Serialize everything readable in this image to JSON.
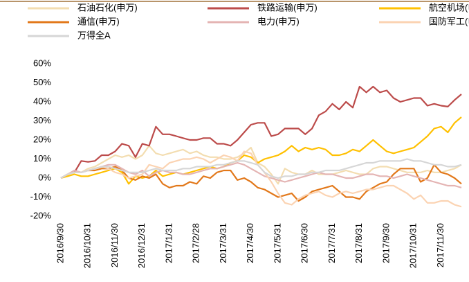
{
  "chart_data": {
    "type": "line",
    "x": [
      "2016/9/30",
      null,
      null,
      null,
      "2016/10/31",
      null,
      null,
      null,
      "2016/11/30",
      null,
      null,
      null,
      "2016/12/31",
      null,
      null,
      null,
      "2017/1/31",
      null,
      null,
      null,
      "2017/2/28",
      null,
      null,
      null,
      "2017/3/31",
      null,
      null,
      null,
      "2017/4/30",
      null,
      null,
      null,
      "2017/5/31",
      null,
      null,
      null,
      "2017/6/30",
      null,
      null,
      null,
      "2017/7/31",
      null,
      null,
      null,
      "2017/8/31",
      null,
      null,
      null,
      "2017/9/30",
      null,
      null,
      null,
      "2017/10/31",
      null,
      null,
      null,
      "2017/11/30",
      null,
      null,
      null
    ],
    "series": [
      {
        "name": "石油石化(申万)",
        "color": "#f3ddb0",
        "values": [
          0,
          2,
          3,
          3,
          5,
          6,
          8,
          10,
          12,
          11,
          12,
          10,
          12,
          17,
          13,
          12,
          13,
          14,
          15,
          13,
          14,
          12,
          11,
          11,
          10,
          10,
          11,
          13,
          16,
          8,
          6,
          2,
          -3,
          5,
          3,
          2,
          2,
          4,
          2,
          2,
          2,
          3,
          4,
          3,
          2,
          2,
          5,
          6,
          6,
          5,
          4,
          3,
          3,
          3,
          4,
          3,
          3,
          4,
          5,
          7
        ]
      },
      {
        "name": "铁路运输(申万)",
        "color": "#bc4b4a",
        "values": [
          0,
          2,
          3,
          9,
          8.5,
          9,
          12,
          12,
          14,
          18,
          17,
          11,
          18,
          17,
          27,
          23,
          23,
          22,
          21,
          20,
          20,
          21,
          21,
          18,
          18,
          17,
          20,
          24,
          28,
          29,
          29,
          22,
          23,
          26,
          26,
          26,
          23,
          26,
          33,
          35,
          39,
          36,
          40,
          37,
          48,
          45,
          48,
          45,
          46,
          42,
          40,
          41,
          42,
          42,
          38,
          39,
          38,
          37.5,
          41,
          44
        ]
      },
      {
        "name": "航空机场(申万)",
        "color": "#ffc000",
        "values": [
          0,
          1,
          2,
          1,
          1,
          2,
          3,
          4,
          5,
          3,
          -3,
          1,
          0,
          1,
          4,
          1,
          2,
          3,
          2,
          3,
          4,
          5,
          6,
          5,
          6,
          8,
          9,
          12,
          11,
          8,
          10,
          11,
          12,
          14,
          17,
          14,
          16,
          15,
          16,
          15,
          12,
          12,
          13,
          15,
          14,
          17,
          20,
          17,
          14,
          13,
          14,
          15,
          16,
          19,
          22,
          26,
          27,
          24,
          29,
          32
        ]
      },
      {
        "name": "通信(申万)",
        "color": "#e2781a",
        "values": [
          0,
          2,
          3,
          3,
          4,
          4,
          5,
          5,
          6,
          4,
          0,
          -1,
          1,
          0,
          2,
          -3,
          -5,
          -4,
          -4,
          -2,
          -3,
          1,
          0,
          3,
          4,
          4,
          -1,
          0,
          -2,
          -5,
          -6,
          -8,
          -10,
          -9,
          -8,
          -12,
          -10,
          -7,
          -6,
          -5,
          -4,
          -7,
          -10,
          -10,
          -11,
          -7,
          -5,
          -3,
          -2,
          2,
          5,
          5,
          5,
          -2,
          0,
          7,
          3,
          2,
          0,
          -3
        ]
      },
      {
        "name": "电力(申万)",
        "color": "#e4b4b3",
        "values": [
          0,
          2,
          4,
          3,
          4,
          5,
          6,
          7,
          7,
          5,
          3,
          2,
          4,
          1,
          3,
          4,
          3,
          3,
          2,
          2,
          3,
          4,
          5,
          5,
          6,
          7,
          8,
          7,
          5,
          3,
          1,
          0,
          -1,
          -2,
          -1,
          0,
          1,
          2,
          3,
          2,
          2,
          1,
          0,
          0,
          1,
          2,
          2,
          1,
          1,
          0,
          1,
          2,
          1,
          0,
          -1,
          -2,
          -3,
          -4,
          -4,
          -5
        ]
      },
      {
        "name": "国防军工(申万)",
        "color": "#fbd3b2",
        "values": [
          0,
          2,
          3,
          3,
          4,
          5,
          6,
          5,
          3,
          2,
          0,
          1,
          2,
          7,
          6,
          5,
          8,
          9,
          10,
          10,
          11,
          10,
          8,
          10,
          12,
          11,
          9,
          14,
          13,
          7,
          3,
          -2,
          -8,
          -13,
          -14,
          -11,
          -9,
          -8,
          -7,
          -9,
          -10,
          -8,
          -7,
          -8,
          -7,
          -6,
          -6,
          -5,
          -4,
          -4,
          -6,
          -8,
          -11,
          -9,
          -13,
          -13,
          -12,
          -12,
          -14,
          -15
        ]
      },
      {
        "name": "万得全A",
        "color": "#d6d6d6",
        "values": [
          0,
          2,
          3,
          3,
          4,
          5,
          6,
          6,
          5,
          4,
          3,
          3,
          3,
          4,
          5,
          4,
          4,
          4,
          5,
          5,
          6,
          6,
          6,
          7,
          7,
          8,
          9,
          9,
          8,
          7,
          3,
          1,
          0,
          1,
          1,
          2,
          2,
          3,
          3,
          4,
          4,
          4,
          5,
          6,
          7,
          8,
          8,
          9,
          9,
          9,
          9,
          10,
          9,
          9,
          8,
          7,
          7,
          6,
          6,
          7
        ]
      }
    ],
    "ylim": [
      -20,
      60
    ],
    "yticks": [
      {
        "value": -20,
        "label": "-20%"
      },
      {
        "value": -10,
        "label": "-10%"
      },
      {
        "value": 0,
        "label": "0%"
      },
      {
        "value": 10,
        "label": "10%"
      },
      {
        "value": 20,
        "label": "20%"
      },
      {
        "value": 30,
        "label": "30%"
      },
      {
        "value": 40,
        "label": "40%"
      },
      {
        "value": 50,
        "label": "50%"
      },
      {
        "value": 60,
        "label": "60%"
      }
    ],
    "grid": false
  }
}
